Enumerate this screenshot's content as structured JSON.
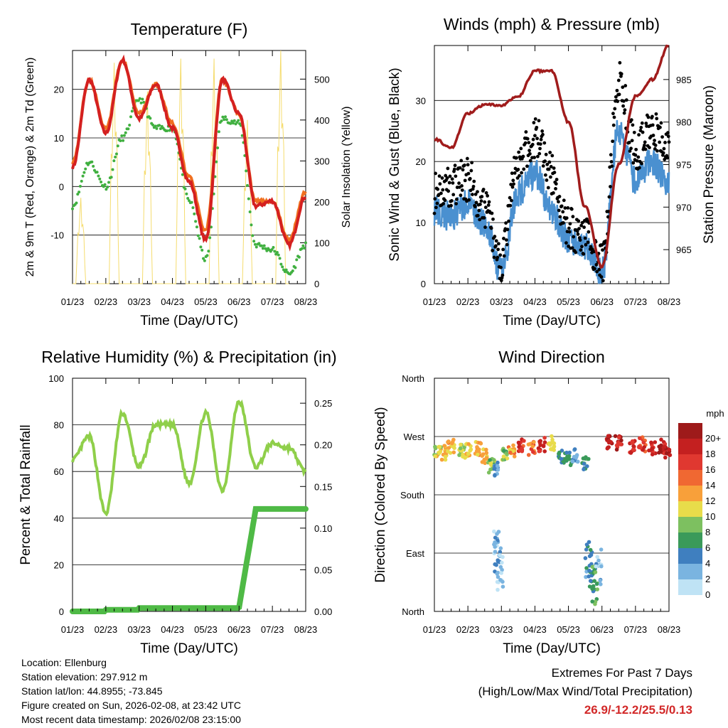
{
  "footer": {
    "location": "Location: Ellenburg",
    "elevation": "Station elevation: 297.912 m",
    "latlon": "Station lat/lon: 44.8955; -73.845",
    "created": "Figure created on Sun, 2026-02-08, at 23:42 UTC",
    "recent": "Most recent data timestamp: 2026/02/08 23:15:00"
  },
  "extremes": {
    "title": "Extremes For Past 7 Days",
    "subtitle": "(High/Low/Max Wind/Total Precipitation)",
    "values": "26.9/-12.2/25.5/0.13",
    "color": "#d22828"
  },
  "chart_data": [
    {
      "id": "temperature",
      "type": "line",
      "title": "Temperature (F)",
      "xlabel": "Time (Day/UTC)",
      "ylabel": "2m & 9m T (Red, Orange) & 2m Td (Green)",
      "y2label": "Solar Insolation (Yellow)",
      "x": [
        0,
        0.5,
        1,
        1.5,
        2,
        2.5,
        3,
        3.5,
        4,
        4.5,
        5,
        5.5,
        6,
        6.5,
        7
      ],
      "xlim": [
        0,
        7
      ],
      "x_tick_labels": [
        "01/23",
        "02/23",
        "03/23",
        "04/23",
        "05/23",
        "06/23",
        "07/23",
        "08/23"
      ],
      "ylim": [
        -20,
        28
      ],
      "y_ticks": [
        -10,
        0,
        10,
        20
      ],
      "y2lim": [
        0,
        570
      ],
      "y2_ticks": [
        0,
        100,
        200,
        300,
        400,
        500
      ],
      "series": [
        {
          "name": "2m T",
          "color": "#d42020",
          "values": [
            4,
            22,
            11,
            26,
            14,
            21,
            12,
            1,
            -11,
            22,
            15,
            -4,
            -3,
            -12,
            -2
          ]
        },
        {
          "name": "9m T",
          "color": "#f07020",
          "values": [
            5,
            22,
            12,
            26,
            15,
            21,
            13,
            2,
            -9,
            22,
            15,
            -3,
            -3,
            -11,
            -1
          ]
        },
        {
          "name": "2m Td",
          "color": "#40b040",
          "values": [
            -4,
            5,
            0,
            10,
            18,
            12,
            12,
            -3,
            -15,
            14,
            13,
            -12,
            -13,
            -18,
            -12
          ]
        },
        {
          "name": "Solar Insolation",
          "color": "#f5dc6e",
          "values": [
            0,
            210,
            0,
            540,
            0,
            470,
            0,
            550,
            0,
            550,
            0,
            400,
            0,
            570,
            0
          ]
        }
      ]
    },
    {
      "id": "winds",
      "type": "line",
      "title": "Winds (mph) & Pressure (mb)",
      "xlabel": "Time (Day/UTC)",
      "ylabel": "Sonic Wind & Gust (Blue, Black)",
      "y2label": "Station Pressure (Maroon)",
      "x": [
        0,
        0.5,
        1,
        1.5,
        2,
        2.5,
        3,
        3.5,
        4,
        4.5,
        5,
        5.5,
        6,
        6.5,
        7
      ],
      "xlim": [
        0,
        7
      ],
      "x_tick_labels": [
        "01/23",
        "02/23",
        "03/23",
        "04/23",
        "05/23",
        "06/23",
        "07/23",
        "08/23"
      ],
      "ylim": [
        0,
        39
      ],
      "y_ticks": [
        0,
        10,
        20,
        30
      ],
      "y2lim": [
        961,
        989
      ],
      "y2_ticks": [
        965,
        970,
        975,
        980,
        985
      ],
      "series": [
        {
          "name": "Sonic Wind",
          "color": "#4a90d0",
          "values": [
            12,
            11,
            13,
            10,
            2,
            15,
            18,
            12,
            7,
            6,
            2,
            25,
            17,
            20,
            16
          ]
        },
        {
          "name": "Gust",
          "color": "#000000",
          "values": [
            15,
            16,
            17,
            12,
            4,
            20,
            24,
            18,
            9,
            8,
            3,
            33,
            22,
            25,
            22
          ]
        },
        {
          "name": "Station Pressure",
          "color": "#a01c1c",
          "values": [
            978,
            977,
            981,
            982,
            982,
            983,
            986,
            986,
            980,
            970,
            963,
            975,
            983,
            985,
            989
          ]
        }
      ]
    },
    {
      "id": "humidity",
      "type": "line",
      "title": "Relative Humidity (%) & Precipitation (in)",
      "xlabel": "Time (Day/UTC)",
      "ylabel": "Percent & Total Rainfall",
      "x": [
        0,
        0.5,
        1,
        1.5,
        2,
        2.5,
        3,
        3.5,
        4,
        4.5,
        5,
        5.5,
        6,
        6.5,
        7
      ],
      "xlim": [
        0,
        7
      ],
      "x_tick_labels": [
        "01/23",
        "02/23",
        "03/23",
        "04/23",
        "05/23",
        "06/23",
        "07/23",
        "08/23"
      ],
      "ylim": [
        0,
        100
      ],
      "y_ticks": [
        0,
        20,
        40,
        60,
        80,
        100
      ],
      "y2lim": [
        0,
        0.28
      ],
      "y2_ticks": [
        "0.00",
        "0.05",
        "0.10",
        "0.15",
        "0.20",
        "0.25"
      ],
      "series": [
        {
          "name": "Relative Humidity",
          "color": "#8fcf4a",
          "values": [
            65,
            75,
            42,
            85,
            62,
            80,
            80,
            55,
            85,
            52,
            90,
            62,
            72,
            70,
            60
          ]
        },
        {
          "name": "Total Precipitation",
          "color": "#4fba46",
          "values": [
            0,
            0,
            0.002,
            0.002,
            0.004,
            0.004,
            0.004,
            0.004,
            0.004,
            0.004,
            0.005,
            0.123,
            0.123,
            0.123,
            0.123
          ]
        }
      ]
    },
    {
      "id": "wind_direction",
      "type": "scatter",
      "title": "Wind Direction",
      "xlabel": "Time (Day/UTC)",
      "ylabel": "Direction (Colored By Speed)",
      "x_tick_labels": [
        "01/23",
        "02/23",
        "03/23",
        "04/23",
        "05/23",
        "06/23",
        "07/23",
        "08/23"
      ],
      "xlim": [
        0,
        7
      ],
      "ylim": [
        0,
        360
      ],
      "y_ticks": [
        0,
        90,
        180,
        270,
        360
      ],
      "y_tick_labels": [
        "North",
        "East",
        "South",
        "West",
        "North"
      ],
      "points": [
        {
          "x": 0.1,
          "dir": 250,
          "speed": 11
        },
        {
          "x": 0.3,
          "dir": 245,
          "speed": 12
        },
        {
          "x": 0.5,
          "dir": 255,
          "speed": 13
        },
        {
          "x": 0.8,
          "dir": 250,
          "speed": 10
        },
        {
          "x": 1.0,
          "dir": 248,
          "speed": 12
        },
        {
          "x": 1.3,
          "dir": 252,
          "speed": 13
        },
        {
          "x": 1.5,
          "dir": 240,
          "speed": 12
        },
        {
          "x": 1.7,
          "dir": 225,
          "speed": 9
        },
        {
          "x": 1.8,
          "dir": 220,
          "speed": 4
        },
        {
          "x": 1.85,
          "dir": 100,
          "speed": 3
        },
        {
          "x": 1.9,
          "dir": 80,
          "speed": 4
        },
        {
          "x": 1.95,
          "dir": 60,
          "speed": 2
        },
        {
          "x": 2.1,
          "dir": 245,
          "speed": 9
        },
        {
          "x": 2.3,
          "dir": 250,
          "speed": 13
        },
        {
          "x": 2.6,
          "dir": 255,
          "speed": 17
        },
        {
          "x": 2.9,
          "dir": 252,
          "speed": 15
        },
        {
          "x": 3.2,
          "dir": 258,
          "speed": 18
        },
        {
          "x": 3.5,
          "dir": 260,
          "speed": 12
        },
        {
          "x": 3.8,
          "dir": 240,
          "speed": 6
        },
        {
          "x": 4.0,
          "dir": 236,
          "speed": 6
        },
        {
          "x": 4.2,
          "dir": 240,
          "speed": 4
        },
        {
          "x": 4.5,
          "dir": 230,
          "speed": 7
        },
        {
          "x": 4.6,
          "dir": 80,
          "speed": 5
        },
        {
          "x": 4.7,
          "dir": 60,
          "speed": 6
        },
        {
          "x": 4.8,
          "dir": 40,
          "speed": 8
        },
        {
          "x": 4.9,
          "dir": 70,
          "speed": 3
        },
        {
          "x": 5.2,
          "dir": 262,
          "speed": 20
        },
        {
          "x": 5.5,
          "dir": 260,
          "speed": 19
        },
        {
          "x": 5.9,
          "dir": 255,
          "speed": 18
        },
        {
          "x": 6.2,
          "dir": 258,
          "speed": 17
        },
        {
          "x": 6.5,
          "dir": 252,
          "speed": 18
        },
        {
          "x": 6.8,
          "dir": 255,
          "speed": 20
        },
        {
          "x": 6.95,
          "dir": 248,
          "speed": 19
        }
      ],
      "colorbar": {
        "label": "mph",
        "tick_labels": [
          "20+",
          "18",
          "16",
          "14",
          "12",
          "10",
          "8",
          "6",
          "4",
          "2",
          "0"
        ],
        "colors": [
          "#9e1a1a",
          "#c42020",
          "#e03830",
          "#f06832",
          "#f8a03a",
          "#e8dc4a",
          "#7dc060",
          "#3a9a5a",
          "#3f7fbf",
          "#7ab4e0",
          "#bfe3f5"
        ]
      }
    }
  ]
}
